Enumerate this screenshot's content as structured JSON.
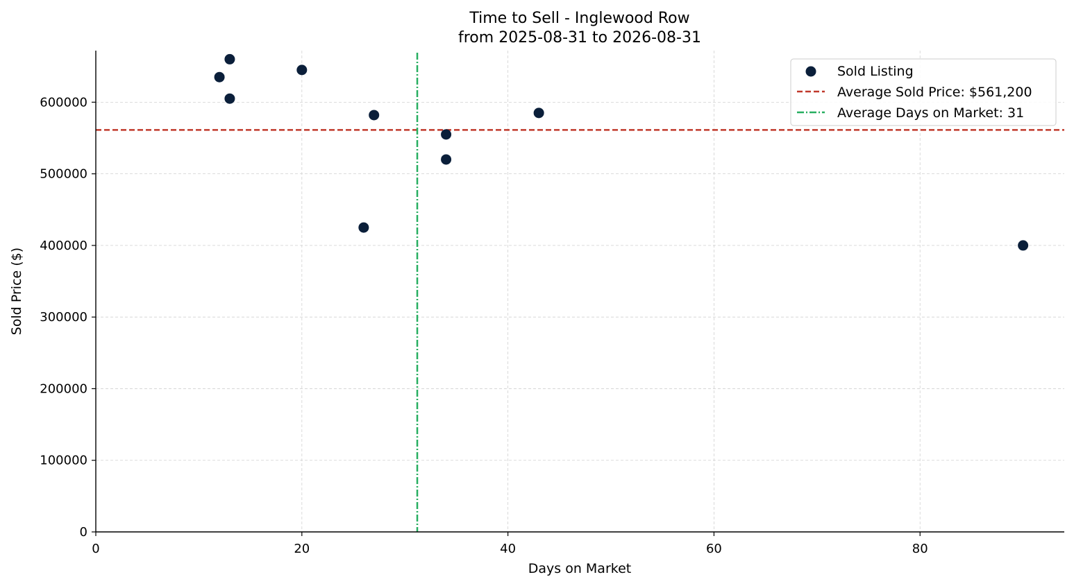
{
  "chart_data": {
    "type": "scatter",
    "title": "Time to Sell - Inglewood Row",
    "subtitle": "from 2025-08-31 to 2026-08-31",
    "xlabel": "Days on Market",
    "ylabel": "Sold Price ($)",
    "xlim": [
      0,
      94
    ],
    "ylim": [
      0,
      672000
    ],
    "x_ticks": [
      0,
      20,
      40,
      60,
      80
    ],
    "y_ticks": [
      0,
      100000,
      200000,
      300000,
      400000,
      500000,
      600000
    ],
    "grid": true,
    "legend_position": "top-right",
    "series": [
      {
        "name": "Sold Listing",
        "color": "#0b1f3a",
        "points": [
          {
            "x": 12,
            "y": 635000
          },
          {
            "x": 13,
            "y": 660000
          },
          {
            "x": 13,
            "y": 605000
          },
          {
            "x": 20,
            "y": 645000
          },
          {
            "x": 26,
            "y": 425000
          },
          {
            "x": 27,
            "y": 582000
          },
          {
            "x": 34,
            "y": 555000
          },
          {
            "x": 34,
            "y": 520000
          },
          {
            "x": 43,
            "y": 585000
          },
          {
            "x": 90,
            "y": 400000
          }
        ]
      }
    ],
    "reference_lines": {
      "avg_price": {
        "label": "Average Sold Price: $561,200",
        "value": 561200,
        "color": "#c0392b"
      },
      "avg_days": {
        "label": "Average Days on Market: 31",
        "value": 31.2,
        "color": "#27ae60"
      }
    }
  }
}
